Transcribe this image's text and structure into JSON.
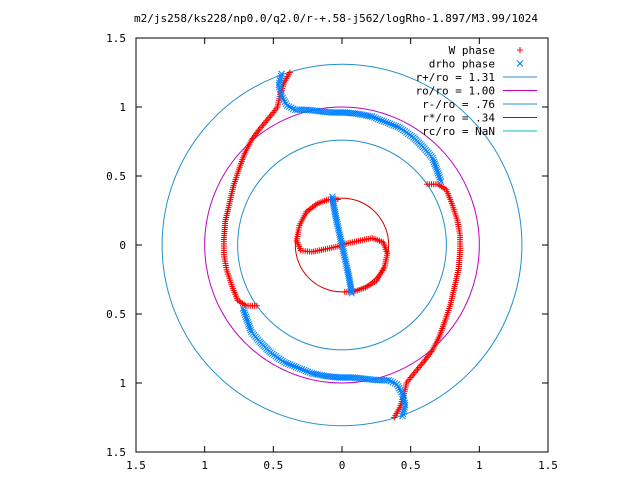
{
  "chart_data": {
    "type": "scatter",
    "title": "m2/js258/ks228/np0.0/q2.0/r-+.58-j562/logRho-1.897/M3.99/1024",
    "xlim": [
      -1.5,
      1.5
    ],
    "ylim": [
      -1.5,
      1.5
    ],
    "x_ticks": [
      {
        "value": -1.5,
        "label": "1.5"
      },
      {
        "value": -1.0,
        "label": "1"
      },
      {
        "value": -0.5,
        "label": "0.5"
      },
      {
        "value": 0.0,
        "label": "0"
      },
      {
        "value": 0.5,
        "label": "0.5"
      },
      {
        "value": 1.0,
        "label": "1"
      },
      {
        "value": 1.5,
        "label": "1.5"
      }
    ],
    "y_ticks": [
      {
        "value": 1.5,
        "label": "1.5"
      },
      {
        "value": 1.0,
        "label": "1"
      },
      {
        "value": 0.5,
        "label": "0.5"
      },
      {
        "value": 0.0,
        "label": "0"
      },
      {
        "value": -0.5,
        "label": "0.5"
      },
      {
        "value": -1.0,
        "label": "1"
      },
      {
        "value": -1.5,
        "label": "1.5"
      }
    ],
    "grid": false,
    "legend_position": "top-right",
    "legend": [
      {
        "label": "W phase",
        "marker": "+",
        "color": "#ff0000"
      },
      {
        "label": "drho phase",
        "marker": "x",
        "color": "#0080ff"
      },
      {
        "label": "r+/ro = 1.31",
        "line": true,
        "color": "#2090d0"
      },
      {
        "label": "ro/ro = 1.00",
        "line": true,
        "color": "#c000c0"
      },
      {
        "label": "r-/ro = .76",
        "line": true,
        "color": "#2090d0"
      },
      {
        "label": "r*/ro = .34",
        "line": true,
        "color": "#d00000"
      },
      {
        "label": "rc/ro = NaN",
        "line": true,
        "color": "#00c0c0"
      }
    ],
    "circles": [
      {
        "name": "r+/ro",
        "r": 1.31,
        "color": "#2090d0"
      },
      {
        "name": "ro/ro",
        "r": 1.0,
        "color": "#c000c0"
      },
      {
        "name": "r-/ro",
        "r": 0.76,
        "color": "#2090d0"
      },
      {
        "name": "r*/ro",
        "r": 0.34,
        "color": "#d00000"
      }
    ],
    "series": [
      {
        "name": "W phase",
        "color": "#ff0000",
        "marker": "+",
        "points": [
          [
            -0.03,
            0.33
          ],
          [
            -0.1,
            0.33
          ],
          [
            -0.18,
            0.3
          ],
          [
            -0.26,
            0.24
          ],
          [
            -0.31,
            0.14
          ],
          [
            -0.33,
            0.03
          ],
          [
            -0.3,
            -0.04
          ],
          [
            -0.22,
            -0.05
          ],
          [
            -0.12,
            -0.03
          ],
          [
            -0.03,
            -0.01
          ],
          [
            0.03,
            0.01
          ],
          [
            0.12,
            0.03
          ],
          [
            0.22,
            0.05
          ],
          [
            0.3,
            0.02
          ],
          [
            0.33,
            -0.06
          ],
          [
            0.31,
            -0.16
          ],
          [
            0.25,
            -0.26
          ],
          [
            0.17,
            -0.31
          ],
          [
            0.08,
            -0.34
          ],
          [
            0.02,
            -0.34
          ],
          [
            -0.38,
            1.25
          ],
          [
            -0.42,
            1.18
          ],
          [
            -0.45,
            1.09
          ],
          [
            -0.47,
            1.0
          ],
          [
            -0.5,
            0.96
          ],
          [
            -0.55,
            0.9
          ],
          [
            -0.6,
            0.84
          ],
          [
            -0.66,
            0.76
          ],
          [
            -0.71,
            0.66
          ],
          [
            -0.75,
            0.55
          ],
          [
            -0.79,
            0.43
          ],
          [
            -0.82,
            0.3
          ],
          [
            -0.85,
            0.17
          ],
          [
            -0.86,
            0.04
          ],
          [
            -0.86,
            -0.07
          ],
          [
            -0.84,
            -0.18
          ],
          [
            -0.8,
            -0.3
          ],
          [
            -0.76,
            -0.4
          ],
          [
            -0.7,
            -0.44
          ],
          [
            -0.62,
            -0.44
          ],
          [
            0.38,
            -1.25
          ],
          [
            0.42,
            -1.18
          ],
          [
            0.45,
            -1.09
          ],
          [
            0.47,
            -1.0
          ],
          [
            0.5,
            -0.96
          ],
          [
            0.55,
            -0.9
          ],
          [
            0.6,
            -0.84
          ],
          [
            0.66,
            -0.76
          ],
          [
            0.71,
            -0.66
          ],
          [
            0.75,
            -0.55
          ],
          [
            0.79,
            -0.43
          ],
          [
            0.82,
            -0.3
          ],
          [
            0.85,
            -0.17
          ],
          [
            0.86,
            -0.04
          ],
          [
            0.86,
            0.07
          ],
          [
            0.84,
            0.18
          ],
          [
            0.8,
            0.3
          ],
          [
            0.76,
            0.4
          ],
          [
            0.7,
            0.44
          ],
          [
            0.62,
            0.44
          ]
        ]
      },
      {
        "name": "drho phase",
        "color": "#0080ff",
        "marker": "x",
        "points": [
          [
            -0.07,
            0.35
          ],
          [
            -0.06,
            0.28
          ],
          [
            -0.04,
            0.18
          ],
          [
            -0.02,
            0.09
          ],
          [
            0.0,
            0.0
          ],
          [
            0.02,
            -0.09
          ],
          [
            0.04,
            -0.18
          ],
          [
            0.06,
            -0.28
          ],
          [
            0.07,
            -0.35
          ],
          [
            -0.44,
            1.24
          ],
          [
            -0.46,
            1.16
          ],
          [
            -0.44,
            1.08
          ],
          [
            -0.4,
            1.01
          ],
          [
            -0.34,
            0.98
          ],
          [
            -0.26,
            0.98
          ],
          [
            -0.17,
            0.97
          ],
          [
            -0.08,
            0.96
          ],
          [
            0.02,
            0.96
          ],
          [
            0.12,
            0.95
          ],
          [
            0.22,
            0.93
          ],
          [
            0.32,
            0.89
          ],
          [
            0.42,
            0.85
          ],
          [
            0.52,
            0.78
          ],
          [
            0.6,
            0.7
          ],
          [
            0.66,
            0.63
          ],
          [
            0.7,
            0.52
          ],
          [
            0.72,
            0.46
          ],
          [
            0.44,
            -1.24
          ],
          [
            0.46,
            -1.16
          ],
          [
            0.44,
            -1.08
          ],
          [
            0.4,
            -1.01
          ],
          [
            0.34,
            -0.98
          ],
          [
            0.26,
            -0.98
          ],
          [
            0.17,
            -0.97
          ],
          [
            0.08,
            -0.96
          ],
          [
            -0.02,
            -0.96
          ],
          [
            -0.12,
            -0.95
          ],
          [
            -0.22,
            -0.93
          ],
          [
            -0.32,
            -0.89
          ],
          [
            -0.42,
            -0.85
          ],
          [
            -0.52,
            -0.78
          ],
          [
            -0.6,
            -0.7
          ],
          [
            -0.66,
            -0.63
          ],
          [
            -0.7,
            -0.52
          ],
          [
            -0.72,
            -0.46
          ]
        ]
      }
    ]
  }
}
